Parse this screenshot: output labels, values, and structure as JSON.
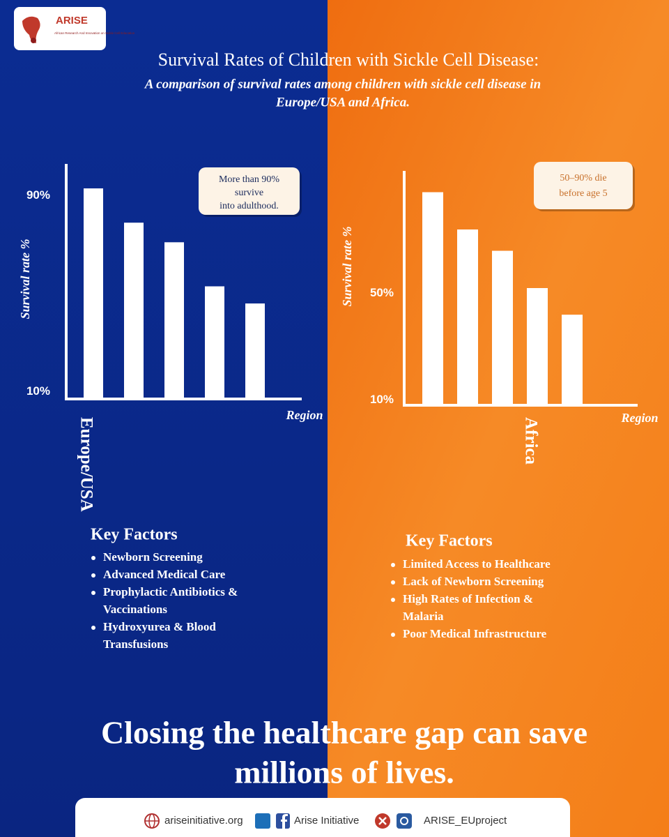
{
  "logo": {
    "name": "ARISE",
    "tagline": "African Research And Innovation on Sickle Cell Education"
  },
  "header": {
    "title": "Survival Rates of Children with Sickle Cell Disease:",
    "subtitle": [
      "A comparison of survival rates among children with sickle cell disease in",
      "Europe/USA and Africa."
    ]
  },
  "chart_data": [
    {
      "type": "bar",
      "region": "Europe/USA",
      "x_label": "Region",
      "y_label": "Survival rate %",
      "categories": [
        null,
        null,
        null,
        null,
        null
      ],
      "values": [
        93,
        79,
        71,
        53,
        46
      ],
      "color": "#ffffff",
      "ylim": [
        7,
        103
      ],
      "yticks": [
        {
          "value": 10,
          "label": "10%"
        },
        {
          "value": 90,
          "label": "90%"
        }
      ],
      "grid": false,
      "annotation": [
        "More than 90%",
        "survive",
        "into adulthood."
      ]
    },
    {
      "type": "bar",
      "region": "Africa",
      "x_label": "Region",
      "y_label": "Survival rate %",
      "categories": [
        null,
        null,
        null,
        null,
        null
      ],
      "values": [
        88,
        74,
        66,
        52,
        42
      ],
      "color": "#ffffff",
      "ylim": [
        8,
        96
      ],
      "yticks": [
        {
          "value": 10,
          "label": "10%"
        },
        {
          "value": 50,
          "label": "50%"
        }
      ],
      "grid": false,
      "annotation": [
        "50–90% die",
        "before age 5"
      ]
    }
  ],
  "factors": [
    {
      "heading": "Key Factors",
      "items": [
        [
          "Newborn Screening"
        ],
        [
          "Advanced Medical Care"
        ],
        [
          "Prophylactic Antibiotics &",
          "Vaccinations"
        ],
        [
          "Hydroxyurea & Blood",
          "Transfusions"
        ]
      ]
    },
    {
      "heading": "Key Factors",
      "items": [
        [
          "Limited Access to Healthcare"
        ],
        [
          "Lack of Newborn Screening"
        ],
        [
          "High Rates of Infection &",
          "Malaria"
        ],
        [
          "Poor Medical Infrastructure"
        ]
      ]
    }
  ],
  "closing": [
    "Closing the healthcare gap can save",
    "millions of lives."
  ],
  "footer": {
    "website": "ariseinitiative.org",
    "facebook": "Arise Initiative",
    "handle": "ARISE_EUproject"
  }
}
